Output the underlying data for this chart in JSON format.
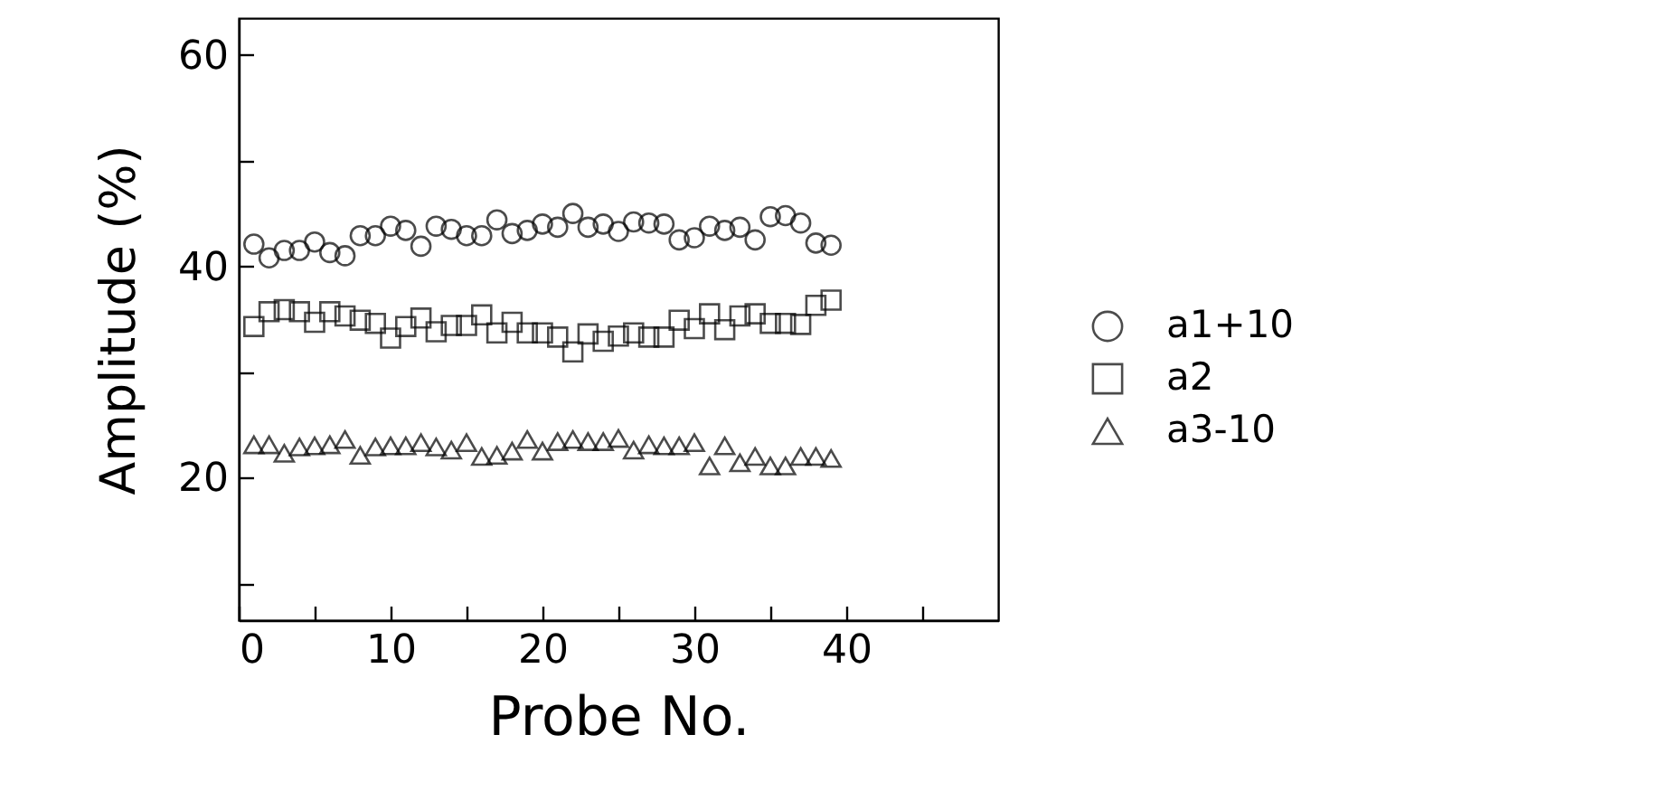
{
  "chart_data": {
    "type": "scatter",
    "xlabel": "Probe No.",
    "ylabel": "Amplitude (%)",
    "x": [
      1,
      2,
      3,
      4,
      5,
      6,
      7,
      8,
      9,
      10,
      11,
      12,
      13,
      14,
      15,
      16,
      17,
      18,
      19,
      20,
      21,
      22,
      23,
      24,
      25,
      26,
      27,
      28,
      29,
      30,
      31,
      32,
      33,
      34,
      35,
      36,
      37,
      38,
      39
    ],
    "series": [
      {
        "name": "a1+10",
        "color": "#000000",
        "marker": "circle",
        "values": [
          42.1,
          40.8,
          41.5,
          41.5,
          42.3,
          41.3,
          41.0,
          42.9,
          42.9,
          43.8,
          43.4,
          41.9,
          43.8,
          43.5,
          42.9,
          42.9,
          44.4,
          43.1,
          43.4,
          44.0,
          43.7,
          45.0,
          43.7,
          44.0,
          43.3,
          44.2,
          44.1,
          44.0,
          42.5,
          42.7,
          43.8,
          43.4,
          43.7,
          42.5,
          44.7,
          44.8,
          44.1,
          42.2,
          42.0
        ]
      },
      {
        "name": "a2",
        "color": "#000000",
        "marker": "square",
        "values": [
          34.3,
          35.7,
          35.9,
          35.7,
          34.7,
          35.7,
          35.3,
          34.9,
          34.6,
          33.2,
          34.3,
          35.1,
          33.8,
          34.4,
          34.4,
          35.4,
          33.7,
          34.7,
          33.7,
          33.7,
          33.3,
          31.9,
          33.6,
          32.9,
          33.4,
          33.7,
          33.3,
          33.3,
          34.9,
          34.1,
          35.5,
          34.0,
          35.3,
          35.5,
          34.6,
          34.6,
          34.5,
          36.3,
          36.8
        ]
      },
      {
        "name": "a3-10",
        "color": "#000000",
        "marker": "triangle",
        "values": [
          23.1,
          23.1,
          22.3,
          22.9,
          23.0,
          23.1,
          23.6,
          22.1,
          22.9,
          23.0,
          23.0,
          23.3,
          22.9,
          22.6,
          23.3,
          22.0,
          22.1,
          22.5,
          23.6,
          22.5,
          23.4,
          23.6,
          23.4,
          23.4,
          23.7,
          22.6,
          23.1,
          23.0,
          23.0,
          23.3,
          21.1,
          23.0,
          21.4,
          22.0,
          21.1,
          21.1,
          22.0,
          22.0,
          21.8
        ]
      }
    ],
    "xlim": [
      0,
      50
    ],
    "ylim": [
      6.5,
      63.5
    ],
    "xticks": [
      0,
      {
        "value": 5,
        "label": null
      },
      10,
      {
        "value": 15,
        "label": null
      },
      20,
      {
        "value": 25,
        "label": null
      },
      30,
      {
        "value": 35,
        "label": null
      },
      40,
      {
        "value": 45,
        "label": null
      }
    ],
    "yticks": [
      {
        "value": 10,
        "label": null
      },
      20,
      {
        "value": 30,
        "label": null
      },
      40,
      {
        "value": 50,
        "label": null
      },
      60
    ],
    "grid": false,
    "legend": "right"
  }
}
